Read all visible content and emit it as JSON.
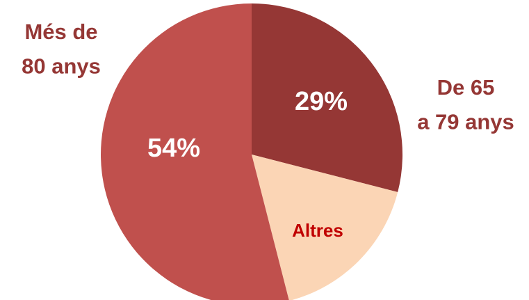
{
  "chart_data": {
    "type": "pie",
    "categories": [
      "De 65\na 79 anys",
      "Altres",
      "Més de\n80 anys"
    ],
    "values": [
      29,
      17,
      54
    ],
    "value_labels": [
      "29%",
      null,
      "54%"
    ],
    "colors": [
      "#953735",
      "#fbd5b5",
      "#c0504d"
    ],
    "category_colors": [
      "#953735",
      "#c00000",
      "#953735"
    ]
  }
}
